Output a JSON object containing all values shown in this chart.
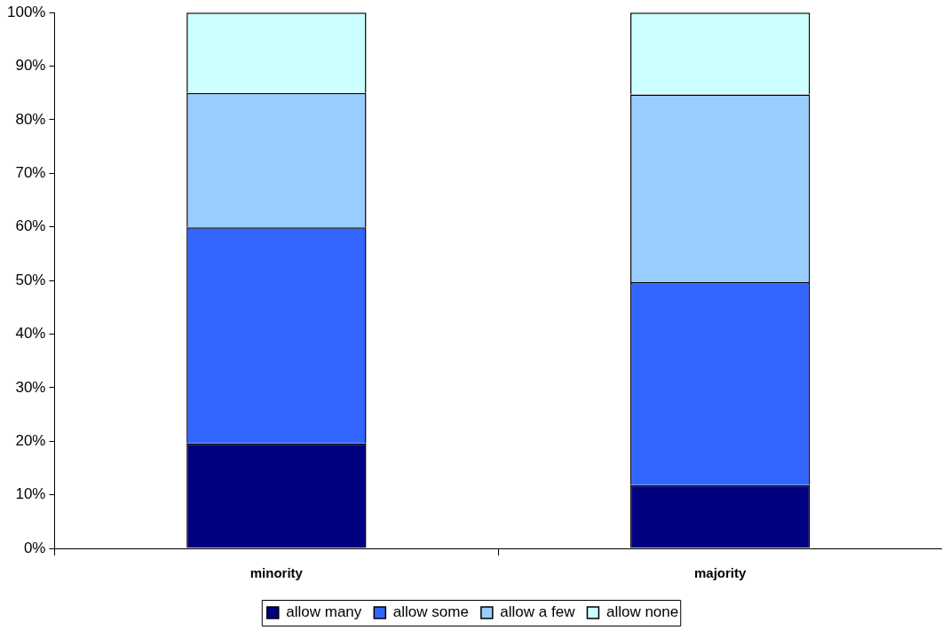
{
  "chart_data": {
    "type": "bar",
    "stacked": true,
    "categories": [
      "minority",
      "majority"
    ],
    "series": [
      {
        "name": "allow many",
        "color": "#000080",
        "values": [
          19.6,
          11.8
        ]
      },
      {
        "name": "allow some",
        "color": "#3366ff",
        "values": [
          40.3,
          37.9
        ]
      },
      {
        "name": "allow a few",
        "color": "#99ccff",
        "values": [
          25.1,
          35.0
        ]
      },
      {
        "name": "allow none",
        "color": "#ccffff",
        "values": [
          15.0,
          15.3
        ]
      }
    ],
    "ylim": [
      0,
      100
    ],
    "yticks": [
      {
        "value": 0,
        "label": "0%"
      },
      {
        "value": 10,
        "label": "10%"
      },
      {
        "value": 20,
        "label": "20%"
      },
      {
        "value": 30,
        "label": "30%"
      },
      {
        "value": 40,
        "label": "40%"
      },
      {
        "value": 50,
        "label": "50%"
      },
      {
        "value": 60,
        "label": "60%"
      },
      {
        "value": 70,
        "label": "70%"
      },
      {
        "value": 80,
        "label": "80%"
      },
      {
        "value": 90,
        "label": "90%"
      },
      {
        "value": 100,
        "label": "100%"
      }
    ],
    "grid": false,
    "legend": "bottom"
  }
}
